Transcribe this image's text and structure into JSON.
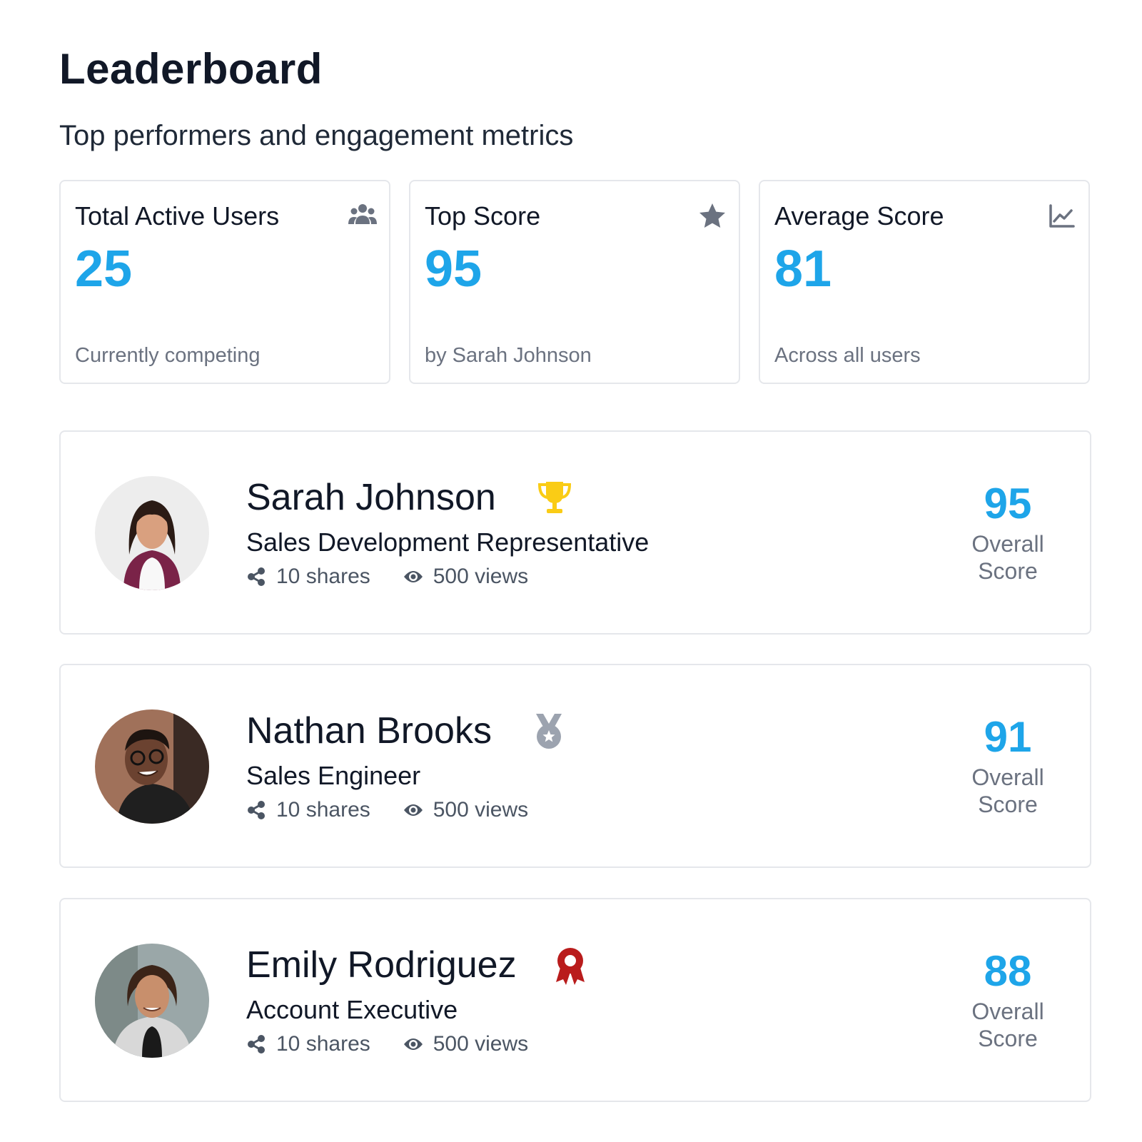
{
  "header": {
    "title": "Leaderboard",
    "subtitle": "Top performers and engagement metrics"
  },
  "stats": [
    {
      "label": "Total Active Users",
      "value": "25",
      "footnote": "Currently competing",
      "icon": "users-icon"
    },
    {
      "label": "Top Score",
      "value": "95",
      "footnote": "by Sarah Johnson",
      "icon": "star-icon"
    },
    {
      "label": "Average Score",
      "value": "81",
      "footnote": "Across all users",
      "icon": "line-chart-icon"
    }
  ],
  "leaders": [
    {
      "name": "Sarah Johnson",
      "role": "Sales Development Representative",
      "shares": "10 shares",
      "views": "500 views",
      "score": "95",
      "score_label_line1": "Overall",
      "score_label_line2": "Score",
      "rank_icon": "trophy-icon"
    },
    {
      "name": "Nathan Brooks",
      "role": "Sales Engineer",
      "shares": "10 shares",
      "views": "500 views",
      "score": "91",
      "score_label_line1": "Overall",
      "score_label_line2": "Score",
      "rank_icon": "silver-medal-icon"
    },
    {
      "name": "Emily Rodriguez",
      "role": "Account Executive",
      "shares": "10 shares",
      "views": "500 views",
      "score": "88",
      "score_label_line1": "Overall",
      "score_label_line2": "Score",
      "rank_icon": "award-ribbon-icon"
    }
  ],
  "colors": {
    "accent": "#1ea5e9",
    "gold": "#facc15",
    "silver": "#9ca3af",
    "bronze": "#b91c1c",
    "muted": "#6b7280"
  }
}
